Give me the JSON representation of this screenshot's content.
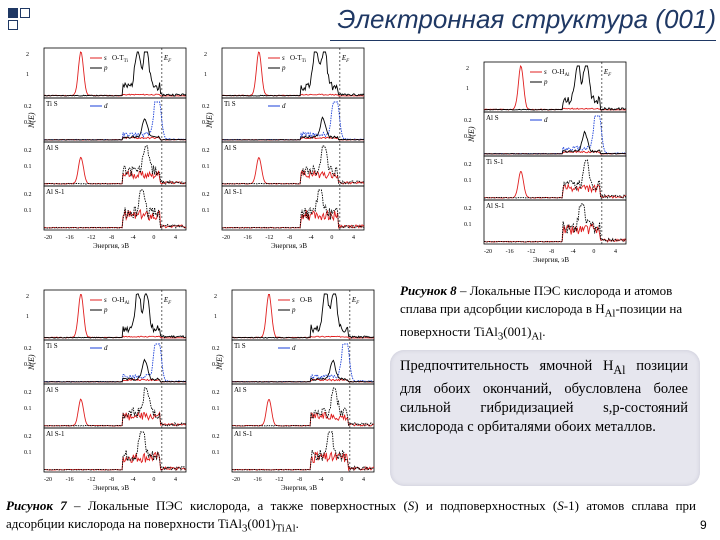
{
  "slide": {
    "title": "Электронная структура (001)",
    "page_number": "9"
  },
  "figure8": {
    "caption_lead": "Рисунок 8",
    "caption_rest": " – Локальные ПЭС кислорода и атомов сплава при адсорбции кислорода в H",
    "caption_sub1": "Al",
    "caption_mid": "-позиции на поверхности TiAl",
    "caption_sub2": "3",
    "caption_tail": "(001)",
    "caption_sub3": "Al",
    "caption_end": "."
  },
  "callout": {
    "text_a": "Предпочтительность ямочной H",
    "text_sub": "Al",
    "text_b": " позиции для обоих окончаний, обусловлена более сильной гибридизацией s,p-состояний кислорода с орбиталями обоих металлов."
  },
  "figure7": {
    "caption_lead": "Рисунок 7",
    "caption_a": " – Локальные ПЭС кислорода, а также поверхностных (",
    "caption_s": "S",
    "caption_b": ") и подповерхностных (",
    "caption_s1": "S",
    "caption_c": "-1) атомов сплава при адсорбции кислорода на поверхности TiAl",
    "caption_sub1": "3",
    "caption_d": "(001)",
    "caption_sub2": "TiAl",
    "caption_e": "."
  },
  "panels": {
    "p1": {
      "site": "O-T",
      "site_sub": "Ti",
      "ef": "E",
      "ef_sub": "F",
      "layer_a": "Ti S",
      "layer_b": "Al S",
      "layer_c": "Al S-1"
    },
    "p2": {
      "site": "O-T",
      "site_sub": "Ti",
      "ef": "E",
      "ef_sub": "F",
      "layer_a": "Ti S",
      "layer_b": "Al S",
      "layer_c": "Al S-1"
    },
    "p3": {
      "site": "O-H",
      "site_sub": "Al",
      "ef": "E",
      "ef_sub": "F",
      "layer_a": "Al S",
      "layer_b": "Ti S-1",
      "layer_c": "Al S-1"
    },
    "p4": {
      "site": "O-H",
      "site_sub": "Al",
      "ef": "E",
      "ef_sub": "F",
      "layer_a": "Ti S",
      "layer_b": "Al S",
      "layer_c": "Al S-1"
    },
    "p5": {
      "site": "O-B",
      "site_sub": "",
      "ef": "E",
      "ef_sub": "F",
      "layer_a": "Ti S",
      "layer_b": "Al S",
      "layer_c": "Al S-1"
    }
  },
  "legend": {
    "s": "s",
    "p": "p",
    "d": "d"
  },
  "axes": {
    "ylabel": "N(E)",
    "xlabel": "Энергия, эВ",
    "xticks": [
      "-20",
      "-16",
      "-12",
      "-8",
      "-4",
      "0",
      "4"
    ],
    "yticks_top": [
      "2",
      "1"
    ],
    "yticks_rest": [
      "0.2",
      "0.1"
    ]
  },
  "colors": {
    "s": "#e02020",
    "p": "#000000",
    "d": "#1a3fd8",
    "title": "#1f3864",
    "callout_bg": "#e6e6ee"
  }
}
